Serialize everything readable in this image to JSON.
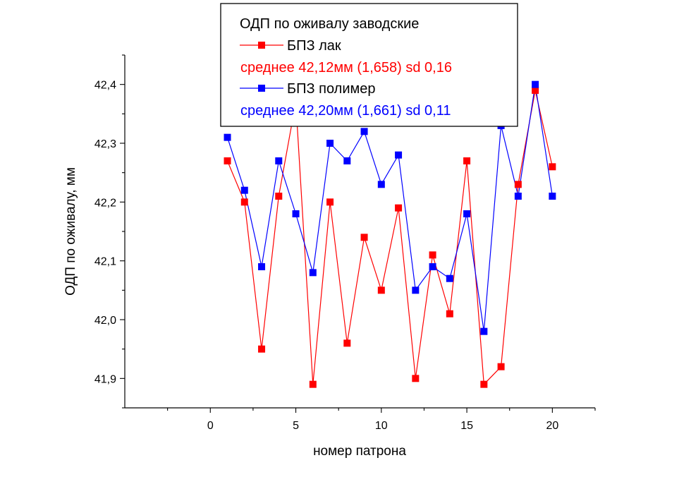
{
  "chart_data": {
    "type": "line",
    "title": "",
    "xlabel": "номер патрона",
    "ylabel": "ОДП по оживалу, мм",
    "xlim": [
      -5,
      22.5
    ],
    "ylim": [
      41.85,
      42.45
    ],
    "x_ticks": [
      0,
      5,
      10,
      15,
      20
    ],
    "x_tick_labels": [
      "0",
      "5",
      "10",
      "15",
      "20"
    ],
    "y_ticks": [
      41.9,
      42.0,
      42.1,
      42.2,
      42.3,
      42.4
    ],
    "y_tick_labels": [
      "41,9",
      "42,0",
      "42,1",
      "42,2",
      "42,3",
      "42,4"
    ],
    "grid": false,
    "legend": {
      "placement": "top-center",
      "title": "ОДП по оживалу заводские",
      "entries": [
        {
          "series": 0,
          "label": "БПЗ лак",
          "note": "среднее 42,12мм (1,658) sd 0,16"
        },
        {
          "series": 1,
          "label": "БПЗ полимер",
          "note": "среднее 42,20мм (1,661) sd 0,11"
        }
      ]
    },
    "x": [
      1,
      2,
      3,
      4,
      5,
      6,
      7,
      8,
      9,
      10,
      11,
      12,
      13,
      14,
      15,
      16,
      17,
      18,
      19,
      20
    ],
    "series": [
      {
        "name": "БПЗ лак",
        "color": "#ff0000",
        "marker": "square",
        "values": [
          42.27,
          42.2,
          41.95,
          42.21,
          42.37,
          41.89,
          42.2,
          41.96,
          42.14,
          42.05,
          42.19,
          41.9,
          42.11,
          42.01,
          42.27,
          41.89,
          41.92,
          42.23,
          42.39,
          42.26
        ]
      },
      {
        "name": "БПЗ полимер",
        "color": "#0000ff",
        "marker": "square",
        "values": [
          42.31,
          42.22,
          42.09,
          42.27,
          42.18,
          42.08,
          42.3,
          42.27,
          42.32,
          42.23,
          42.28,
          42.05,
          42.09,
          42.07,
          42.18,
          41.98,
          42.33,
          42.21,
          42.4,
          42.21
        ]
      }
    ]
  }
}
